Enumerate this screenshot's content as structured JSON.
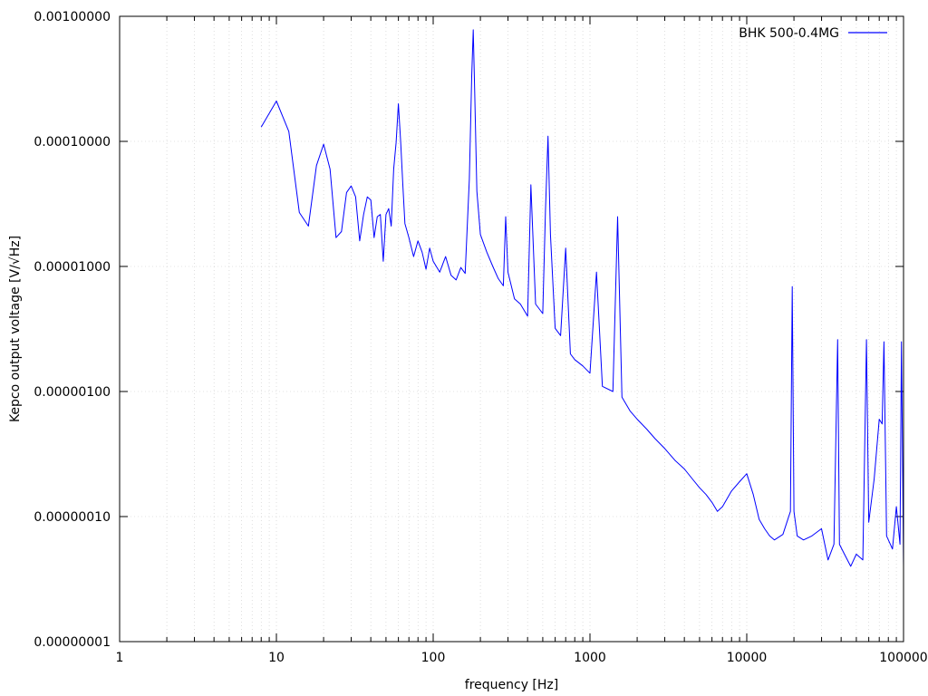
{
  "chart_data": {
    "type": "line",
    "title": "",
    "xlabel": "frequency [Hz]",
    "ylabel": "Kepco output voltage [V/√Hz]",
    "xscale": "log",
    "yscale": "log",
    "xlim": [
      1,
      100000
    ],
    "ylim": [
      1e-08,
      0.001
    ],
    "x_tick_labels": [
      "1",
      "10",
      "100",
      "1000",
      "10000",
      "100000"
    ],
    "y_tick_labels": [
      "0.00000001",
      "0.00000010",
      "0.00000100",
      "0.00001000",
      "0.00010000",
      "0.00100000"
    ],
    "grid": true,
    "legend_position": "top-right",
    "series": [
      {
        "name": "BHK 500-0.4MG",
        "color": "#0000ff",
        "points": [
          [
            8,
            0.00013
          ],
          [
            10,
            0.00021
          ],
          [
            12,
            0.00012
          ],
          [
            14,
            2.7e-05
          ],
          [
            16,
            2.1e-05
          ],
          [
            18,
            6.4e-05
          ],
          [
            20,
            9.5e-05
          ],
          [
            22,
            6e-05
          ],
          [
            24,
            1.7e-05
          ],
          [
            26,
            1.9e-05
          ],
          [
            28,
            3.9e-05
          ],
          [
            30,
            4.4e-05
          ],
          [
            32,
            3.6e-05
          ],
          [
            34,
            1.6e-05
          ],
          [
            36,
            2.6e-05
          ],
          [
            38,
            3.6e-05
          ],
          [
            40,
            3.4e-05
          ],
          [
            42,
            1.7e-05
          ],
          [
            44,
            2.5e-05
          ],
          [
            46,
            2.6e-05
          ],
          [
            48,
            1.1e-05
          ],
          [
            50,
            2.6e-05
          ],
          [
            52,
            2.9e-05
          ],
          [
            54,
            2.1e-05
          ],
          [
            56,
            6e-05
          ],
          [
            58,
            9.8e-05
          ],
          [
            60,
            0.0002
          ],
          [
            62,
            0.0001
          ],
          [
            64,
            4.5e-05
          ],
          [
            66,
            2.2e-05
          ],
          [
            70,
            1.7e-05
          ],
          [
            75,
            1.2e-05
          ],
          [
            80,
            1.6e-05
          ],
          [
            85,
            1.3e-05
          ],
          [
            90,
            9.5e-06
          ],
          [
            95,
            1.4e-05
          ],
          [
            100,
            1.1e-05
          ],
          [
            110,
            9e-06
          ],
          [
            120,
            1.2e-05
          ],
          [
            130,
            8.5e-06
          ],
          [
            140,
            7.8e-06
          ],
          [
            150,
            9.8e-06
          ],
          [
            160,
            8.8e-06
          ],
          [
            170,
            5e-05
          ],
          [
            176,
            0.00033
          ],
          [
            180,
            0.00078
          ],
          [
            184,
            0.00025
          ],
          [
            190,
            4e-05
          ],
          [
            200,
            1.8e-05
          ],
          [
            220,
            1.3e-05
          ],
          [
            240,
            1e-05
          ],
          [
            260,
            8e-06
          ],
          [
            280,
            7e-06
          ],
          [
            290,
            2.5e-05
          ],
          [
            300,
            9e-06
          ],
          [
            330,
            5.5e-06
          ],
          [
            360,
            5e-06
          ],
          [
            400,
            4e-06
          ],
          [
            420,
            4.5e-05
          ],
          [
            450,
            5e-06
          ],
          [
            500,
            4.2e-06
          ],
          [
            520,
            2.8e-05
          ],
          [
            540,
            0.00011
          ],
          [
            560,
            1.8e-05
          ],
          [
            600,
            3.2e-06
          ],
          [
            650,
            2.8e-06
          ],
          [
            700,
            1.4e-05
          ],
          [
            750,
            2e-06
          ],
          [
            800,
            1.8e-06
          ],
          [
            900,
            1.6e-06
          ],
          [
            1000,
            1.4e-06
          ],
          [
            1100,
            9e-06
          ],
          [
            1200,
            1.1e-06
          ],
          [
            1400,
            1e-06
          ],
          [
            1500,
            2.5e-05
          ],
          [
            1600,
            9e-07
          ],
          [
            1800,
            7e-07
          ],
          [
            2000,
            6e-07
          ],
          [
            2300,
            5e-07
          ],
          [
            2600,
            4.2e-07
          ],
          [
            3000,
            3.5e-07
          ],
          [
            3500,
            2.8e-07
          ],
          [
            4000,
            2.4e-07
          ],
          [
            4500,
            2e-07
          ],
          [
            5000,
            1.7e-07
          ],
          [
            5500,
            1.5e-07
          ],
          [
            6000,
            1.3e-07
          ],
          [
            6500,
            1.1e-07
          ],
          [
            7000,
            1.2e-07
          ],
          [
            8000,
            1.6e-07
          ],
          [
            9000,
            1.9e-07
          ],
          [
            10000,
            2.2e-07
          ],
          [
            11000,
            1.5e-07
          ],
          [
            12000,
            9.5e-08
          ],
          [
            13000,
            8e-08
          ],
          [
            14000,
            7e-08
          ],
          [
            15000,
            6.5e-08
          ],
          [
            17000,
            7.2e-08
          ],
          [
            19000,
            1.1e-07
          ],
          [
            19500,
            6.9e-06
          ],
          [
            20000,
            1.1e-07
          ],
          [
            21000,
            7e-08
          ],
          [
            23000,
            6.5e-08
          ],
          [
            26000,
            7e-08
          ],
          [
            30000,
            8e-08
          ],
          [
            33000,
            4.5e-08
          ],
          [
            36000,
            6e-08
          ],
          [
            38000,
            2.6e-06
          ],
          [
            39000,
            6e-08
          ],
          [
            42000,
            5e-08
          ],
          [
            46000,
            4e-08
          ],
          [
            50000,
            5e-08
          ],
          [
            55000,
            4.5e-08
          ],
          [
            58000,
            2.6e-06
          ],
          [
            60000,
            9e-08
          ],
          [
            65000,
            2e-07
          ],
          [
            70000,
            6e-07
          ],
          [
            73000,
            5.5e-07
          ],
          [
            75000,
            2.5e-06
          ],
          [
            78000,
            7e-08
          ],
          [
            85000,
            5.5e-08
          ],
          [
            90000,
            1.2e-07
          ],
          [
            95000,
            6e-08
          ],
          [
            97000,
            2.5e-06
          ],
          [
            100000,
            4e-08
          ]
        ]
      }
    ]
  }
}
